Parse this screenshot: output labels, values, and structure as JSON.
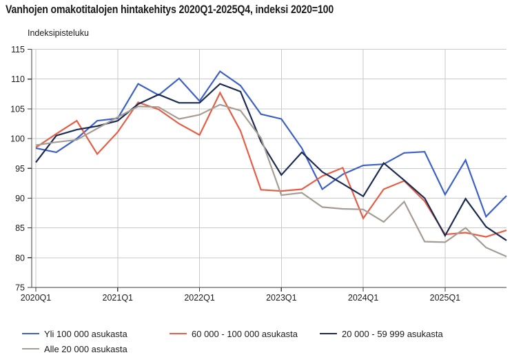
{
  "colors": {
    "text": "#1a1a1a",
    "grid": "#c9c9c9",
    "axis": "#3d3d3d",
    "background": "#ffffff"
  },
  "chart_data": {
    "type": "line",
    "title": "Vanhojen omakotitalojen hintakehitys 2020Q1-2025Q4, indeksi 2020=100",
    "ylabel": "Indeksipisteluku",
    "xlabel": "",
    "ylim": [
      75,
      115
    ],
    "y_ticks": [
      75,
      80,
      85,
      90,
      95,
      100,
      105,
      110,
      115
    ],
    "x_tick_labels": [
      "2020Q1",
      "2021Q1",
      "2022Q1",
      "2023Q1",
      "2024Q1",
      "2025Q1"
    ],
    "x_tick_indices": [
      0,
      4,
      8,
      12,
      16,
      20
    ],
    "grid": true,
    "legend_position": "bottom",
    "categories": [
      "2020Q1",
      "2020Q2",
      "2020Q3",
      "2020Q4",
      "2021Q1",
      "2021Q2",
      "2021Q3",
      "2021Q4",
      "2022Q1",
      "2022Q2",
      "2022Q3",
      "2022Q4",
      "2023Q1",
      "2023Q2",
      "2023Q3",
      "2023Q4",
      "2024Q1",
      "2024Q2",
      "2024Q3",
      "2024Q4",
      "2025Q1",
      "2025Q2",
      "2025Q3",
      "2025Q4"
    ],
    "series": [
      {
        "name": "Yli 100 000 asukasta",
        "color": "#3c61c6",
        "values": [
          98.4,
          97.7,
          100.0,
          103.0,
          103.4,
          109.2,
          107.3,
          110.1,
          106.3,
          111.3,
          108.9,
          104.1,
          103.3,
          98.4,
          91.5,
          94.0,
          95.5,
          95.7,
          97.6,
          97.8,
          90.6,
          96.4,
          86.9,
          90.4
        ]
      },
      {
        "name": "60 000 - 100 000 asukasta",
        "color": "#e65d45",
        "values": [
          98.5,
          100.8,
          103.0,
          97.4,
          101.1,
          106.1,
          104.9,
          102.5,
          100.6,
          107.7,
          101.3,
          91.4,
          91.2,
          91.5,
          93.7,
          95.1,
          86.6,
          91.5,
          92.9,
          89.5,
          83.9,
          84.2,
          83.5,
          84.6
        ]
      },
      {
        "name": "20 000 - 59 999 asukasta",
        "color": "#1b2a52",
        "values": [
          96.0,
          100.5,
          101.5,
          102.1,
          103.0,
          105.8,
          107.4,
          106.0,
          106.0,
          109.2,
          107.9,
          99.5,
          93.9,
          97.7,
          94.4,
          92.4,
          90.3,
          95.9,
          93.0,
          90.0,
          83.7,
          89.9,
          85.2,
          82.9
        ]
      },
      {
        "name": "Alle 20 000 asukasta",
        "color": "#a59d94",
        "values": [
          98.9,
          99.4,
          99.8,
          101.7,
          103.6,
          105.4,
          105.3,
          103.3,
          104.0,
          105.7,
          104.7,
          100.1,
          90.5,
          90.9,
          88.5,
          88.2,
          88.1,
          86.0,
          89.4,
          82.7,
          82.6,
          85.0,
          81.7,
          80.2
        ]
      }
    ]
  }
}
